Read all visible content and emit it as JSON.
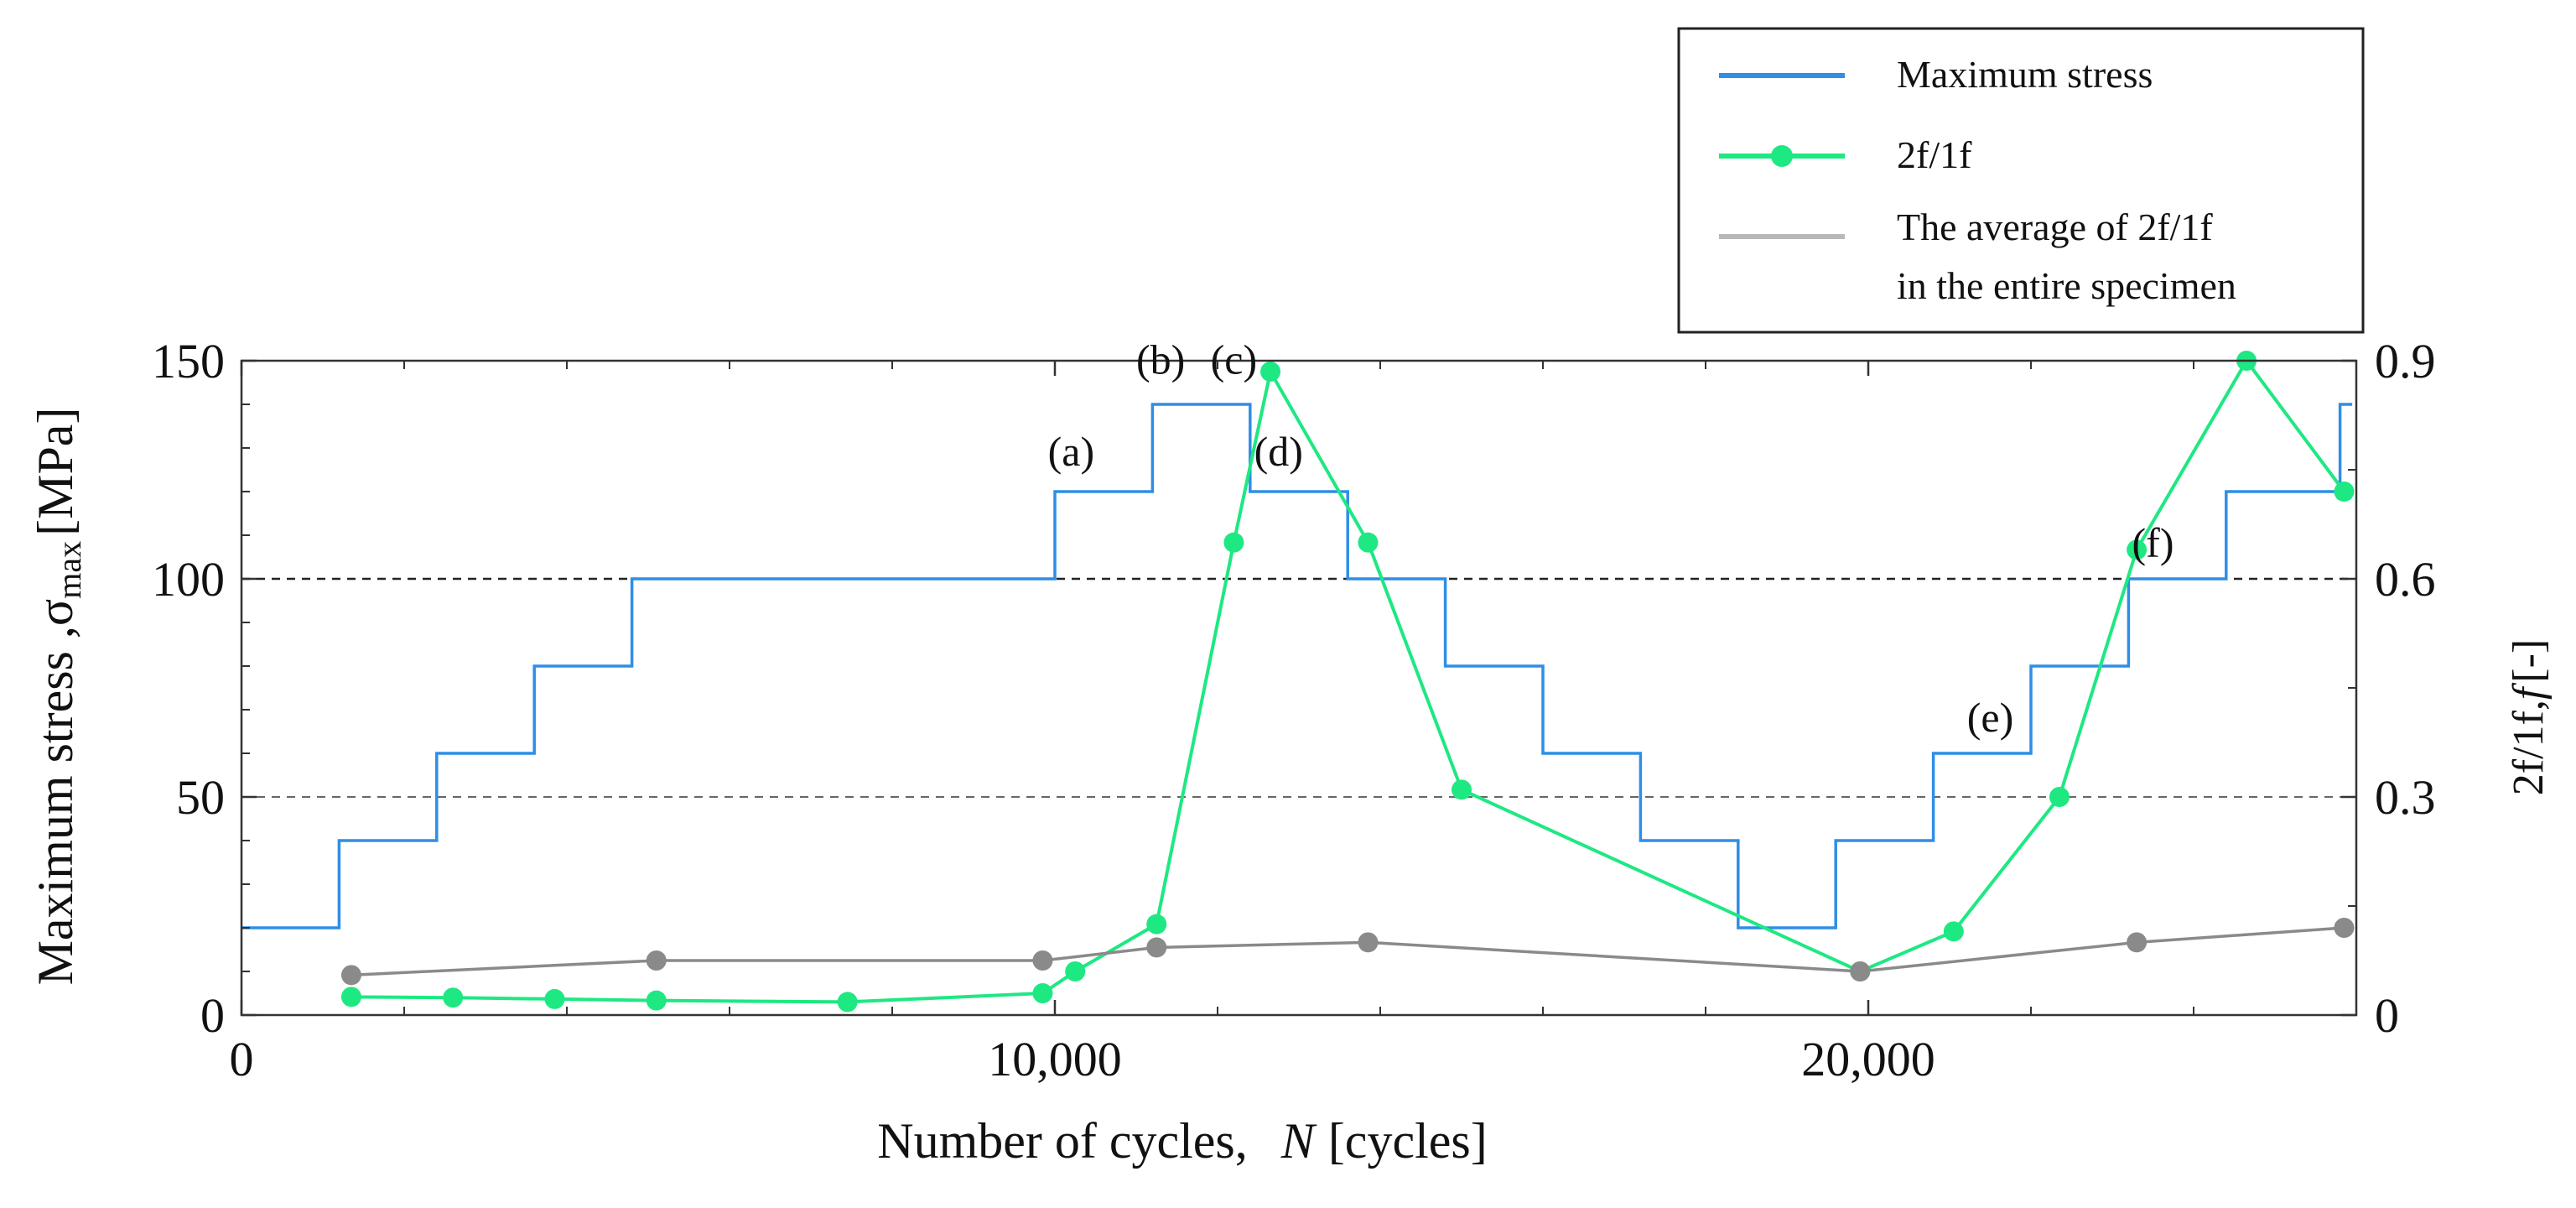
{
  "chart_data": {
    "type": "line",
    "xlabel_text": "Number of cycles,",
    "xlabel_var": "N",
    "xlabel_unit": "[cycles]",
    "ylabel_left": "Maximum stress ,",
    "ylabel_left_sigma": "σ",
    "ylabel_left_sub": "max",
    "ylabel_left_unit": "[MPa]",
    "ylabel_right": "2f/1f,",
    "ylabel_right_var": "f",
    "ylabel_right_unit": "[-]",
    "xlim": [
      0,
      26000
    ],
    "ylim_left": [
      0,
      150
    ],
    "ylim_right": [
      0,
      0.9
    ],
    "x_ticks": [
      0,
      10000,
      20000
    ],
    "x_tick_labels": [
      "0",
      "10,000",
      "20,000"
    ],
    "y_left_ticks": [
      0,
      50,
      100,
      150
    ],
    "y_left_tick_labels": [
      "0",
      "50",
      "100",
      "150"
    ],
    "y_right_ticks": [
      0,
      0.3,
      0.6,
      0.9
    ],
    "y_right_tick_labels": [
      "0",
      "0.3",
      "0.6",
      "0.9"
    ],
    "reference_lines": [
      50,
      100
    ],
    "series": [
      {
        "name": "Maximum stress",
        "axis": "left",
        "style": "step",
        "color": "#2f8ee6",
        "x": [
          0,
          1200,
          2400,
          3600,
          4800,
          10000,
          11200,
          12400,
          13600,
          14800,
          16000,
          17200,
          18400,
          19600,
          20800,
          22000,
          23200,
          24400,
          25800,
          25950
        ],
        "y": [
          20,
          40,
          60,
          80,
          100,
          120,
          140,
          120,
          100,
          80,
          60,
          40,
          20,
          40,
          60,
          80,
          100,
          120,
          140,
          140
        ]
      },
      {
        "name": "2f/1f",
        "axis": "right",
        "style": "line-marker",
        "color": "#1ee882",
        "x": [
          1350,
          2600,
          3850,
          5100,
          7450,
          9850,
          10250,
          11250,
          12200,
          12650,
          13850,
          15000,
          19900,
          21050,
          22350,
          23300,
          24650,
          25850
        ],
        "y": [
          0.025,
          0.024,
          0.022,
          0.02,
          0.018,
          0.03,
          0.06,
          0.125,
          0.65,
          0.885,
          0.65,
          0.31,
          0.06,
          0.115,
          0.3,
          0.64,
          0.9,
          0.72
        ]
      },
      {
        "name": "The average of 2f/1f in the entire specimen",
        "axis": "right",
        "style": "line-marker",
        "color": "#8a8a8a",
        "x": [
          1350,
          5100,
          9850,
          11250,
          13850,
          19900,
          23300,
          25850
        ],
        "y": [
          0.055,
          0.075,
          0.075,
          0.093,
          0.1,
          0.06,
          0.1,
          0.12
        ]
      }
    ],
    "legend": {
      "placement": "top-right",
      "entries": [
        {
          "label": "Maximum stress",
          "color": "#2f8ee6",
          "marker": false
        },
        {
          "label": "2f/1f",
          "color": "#1ee882",
          "marker": true
        },
        {
          "label_line1": "The average of 2f/1f",
          "label_line2": "in the entire specimen",
          "color": "#b8b8b8",
          "marker": false
        }
      ]
    },
    "annotations": [
      {
        "text": "(a)",
        "x": 10200,
        "y": 126
      },
      {
        "text": "(b)",
        "x": 11300,
        "y": 147
      },
      {
        "text": "(c)",
        "x": 12200,
        "y": 147
      },
      {
        "text": "(d)",
        "x": 12750,
        "y": 126
      },
      {
        "text": "(e)",
        "x": 21500,
        "y": 65
      },
      {
        "text": "(f)",
        "x": 23500,
        "y": 105
      }
    ]
  }
}
